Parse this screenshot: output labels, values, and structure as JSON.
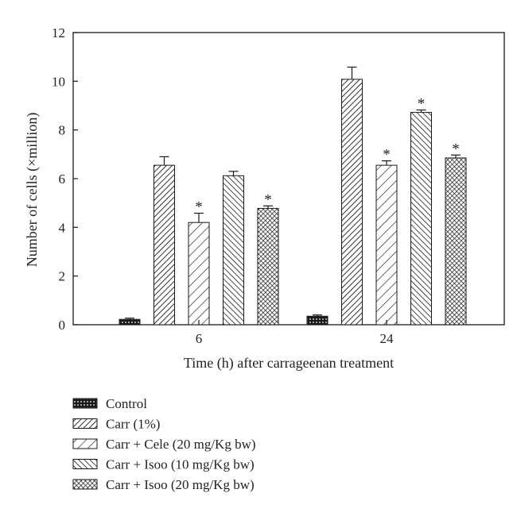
{
  "chart_data": {
    "type": "bar",
    "xlabel": "Time (h) after carrageenan treatment",
    "ylabel": "Number of cells (×million)",
    "ylim": [
      0,
      12
    ],
    "yticks": [
      0,
      2,
      4,
      6,
      8,
      10,
      12
    ],
    "categories": [
      "6",
      "24"
    ],
    "series": [
      {
        "name": "Control",
        "values": [
          0.22,
          0.35
        ],
        "errors": [
          0.05,
          0.05
        ],
        "significant": [
          false,
          false
        ],
        "pattern": "dots"
      },
      {
        "name": "Carr (1%)",
        "values": [
          6.55,
          10.08
        ],
        "errors": [
          0.35,
          0.5
        ],
        "significant": [
          false,
          false
        ],
        "pattern": "diag-dense"
      },
      {
        "name": "Carr + Cele (20 mg/Kg bw)",
        "values": [
          4.2,
          6.55
        ],
        "errors": [
          0.38,
          0.18
        ],
        "significant": [
          true,
          true
        ],
        "pattern": "diag-sparse"
      },
      {
        "name": "Carr + Isoo (10 mg/Kg bw)",
        "values": [
          6.12,
          8.72
        ],
        "errors": [
          0.18,
          0.1
        ],
        "significant": [
          false,
          true
        ],
        "pattern": "backdiag"
      },
      {
        "name": "Carr + Isoo (20 mg/Kg bw)",
        "values": [
          4.78,
          6.85
        ],
        "errors": [
          0.1,
          0.12
        ],
        "significant": [
          true,
          true
        ],
        "pattern": "crosshatch"
      }
    ],
    "significance_marker": "*",
    "legend_position": "bottom-left"
  }
}
